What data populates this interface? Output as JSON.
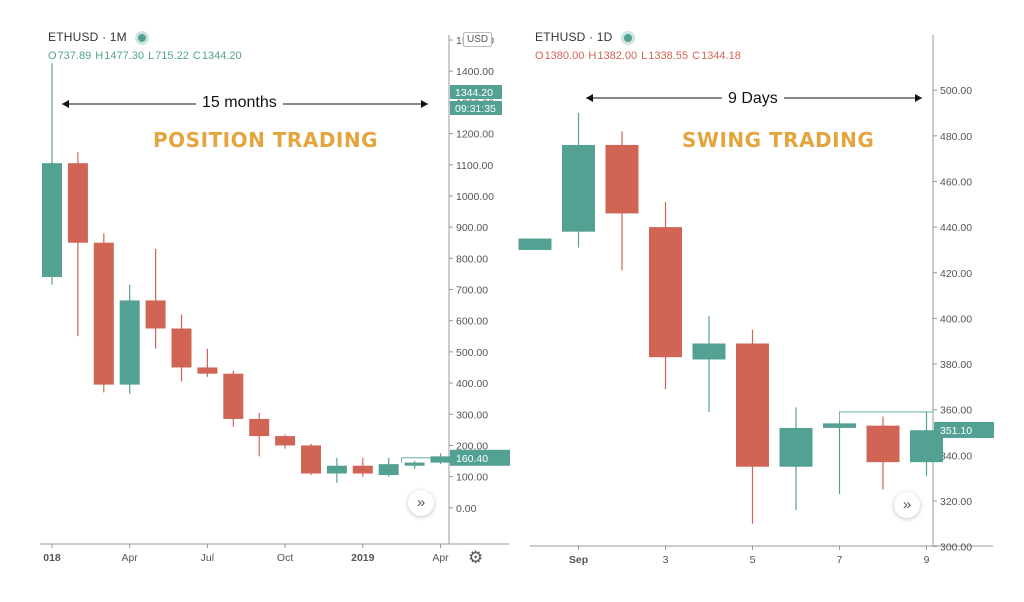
{
  "colors": {
    "up": "#53a193",
    "down": "#d06556",
    "title": "#e3a63f",
    "axis": "#555555"
  },
  "left": {
    "symbol": "ETHUSD · 1M",
    "ohlc": {
      "o_label": "O",
      "o": "737.89",
      "h_label": "H",
      "h": "1477.30",
      "l_label": "L",
      "l": "715.22",
      "c_label": "C",
      "c": "1344.20"
    },
    "ohlc_color": "#53a193",
    "overlay_title": "POSITION TRADING",
    "span_label": "15 months",
    "currency_button": "USD",
    "price_tag": "1344.20",
    "countdown_tag": "09:31:35",
    "last_price_tag": "160.40",
    "scroll_icon": "double-chevron-right-icon",
    "settings_icon": "gear-icon"
  },
  "right": {
    "symbol": "ETHUSD · 1D",
    "ohlc": {
      "o_label": "O",
      "o": "1380.00",
      "h_label": "H",
      "h": "1382.00",
      "l_label": "L",
      "l": "1338.55",
      "c_label": "C",
      "c": "1344.18"
    },
    "ohlc_color": "#d06556",
    "overlay_title": "SWING TRADING",
    "span_label": "9 Days",
    "last_price_tag": "351.10",
    "scroll_icon": "double-chevron-right-icon"
  },
  "chart_data": [
    {
      "type": "candlestick",
      "ylim": [
        -100,
        1500
      ],
      "y_ticks": [
        "1500.00",
        "1400.00",
        "1300.00",
        "1200.00",
        "1100.00",
        "1000.00",
        "900.00",
        "800.00",
        "700.00",
        "600.00",
        "500.00",
        "400.00",
        "300.00",
        "200.00",
        "100.00",
        "0.00"
      ],
      "y_tick_values": [
        1500,
        1400,
        1300,
        1200,
        1100,
        1000,
        900,
        800,
        700,
        600,
        500,
        400,
        300,
        200,
        100,
        0
      ],
      "x_ticks": [
        {
          "label": "018",
          "index": 0
        },
        {
          "label": "Apr",
          "index": 3
        },
        {
          "label": "Jul",
          "index": 6
        },
        {
          "label": "Oct",
          "index": 9
        },
        {
          "label": "2019",
          "index": 12
        },
        {
          "label": "Apr",
          "index": 15
        }
      ],
      "candles": [
        {
          "o": 740,
          "h": 1425,
          "l": 715,
          "c": 1105
        },
        {
          "o": 1105,
          "h": 1140,
          "l": 550,
          "c": 850
        },
        {
          "o": 850,
          "h": 880,
          "l": 370,
          "c": 395
        },
        {
          "o": 395,
          "h": 715,
          "l": 365,
          "c": 665
        },
        {
          "o": 665,
          "h": 830,
          "l": 510,
          "c": 575
        },
        {
          "o": 575,
          "h": 620,
          "l": 405,
          "c": 450
        },
        {
          "o": 450,
          "h": 510,
          "l": 420,
          "c": 430
        },
        {
          "o": 430,
          "h": 440,
          "l": 260,
          "c": 285
        },
        {
          "o": 285,
          "h": 305,
          "l": 165,
          "c": 230
        },
        {
          "o": 230,
          "h": 235,
          "l": 190,
          "c": 200
        },
        {
          "o": 200,
          "h": 205,
          "l": 105,
          "c": 110
        },
        {
          "o": 110,
          "h": 160,
          "l": 80,
          "c": 135
        },
        {
          "o": 135,
          "h": 160,
          "l": 100,
          "c": 110
        },
        {
          "o": 105,
          "h": 160,
          "l": 100,
          "c": 140
        },
        {
          "o": 135,
          "h": 150,
          "l": 125,
          "c": 145
        },
        {
          "o": 145,
          "h": 175,
          "l": 140,
          "c": 165
        }
      ],
      "last_price": 160.4
    },
    {
      "type": "candlestick",
      "ylim": [
        295,
        522
      ],
      "y_ticks": [
        "500.00",
        "480.00",
        "460.00",
        "440.00",
        "420.00",
        "400.00",
        "380.00",
        "360.00",
        "340.00",
        "320.00",
        "300.00"
      ],
      "y_tick_values": [
        500,
        480,
        460,
        440,
        420,
        400,
        380,
        360,
        340,
        320,
        300
      ],
      "x_ticks": [
        {
          "label": "Sep",
          "index": 1
        },
        {
          "label": "3",
          "index": 3
        },
        {
          "label": "5",
          "index": 5
        },
        {
          "label": "7",
          "index": 7
        },
        {
          "label": "9",
          "index": 9
        }
      ],
      "candles": [
        {
          "o": 430,
          "h": 435,
          "l": 430,
          "c": 435
        },
        {
          "o": 438,
          "h": 490,
          "l": 431,
          "c": 476
        },
        {
          "o": 476,
          "h": 482,
          "l": 421,
          "c": 446
        },
        {
          "o": 440,
          "h": 451,
          "l": 369,
          "c": 383
        },
        {
          "o": 382,
          "h": 401,
          "l": 359,
          "c": 389
        },
        {
          "o": 389,
          "h": 395,
          "l": 310,
          "c": 335
        },
        {
          "o": 335,
          "h": 361,
          "l": 316,
          "c": 352
        },
        {
          "o": 352,
          "h": 355,
          "l": 323,
          "c": 354
        },
        {
          "o": 353,
          "h": 357,
          "l": 325,
          "c": 337
        },
        {
          "o": 337,
          "h": 359,
          "l": 331,
          "c": 351
        }
      ],
      "last_price": 351.1
    }
  ]
}
